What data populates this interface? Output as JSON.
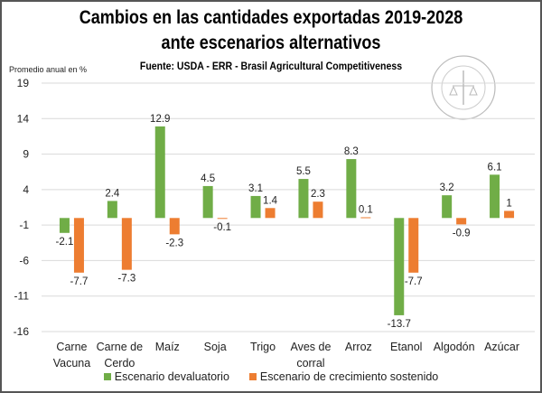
{
  "chart_data": {
    "type": "bar",
    "title": "Cambios en las cantidades exportadas 2019-2028",
    "title_line2": "ante escenarios alternativos",
    "subtitle": "Fuente: USDA - ERR - Brasil Agricultural  Competitiveness",
    "ylabel": "Promedio anual en %",
    "ylim": [
      -16,
      19
    ],
    "yticks": [
      19,
      14,
      9,
      4,
      -1,
      -6,
      -11,
      -16
    ],
    "grid": true,
    "legend_position": "bottom",
    "categories": [
      [
        "Carne",
        "Vacuna"
      ],
      [
        "Carne de",
        "Cerdo"
      ],
      [
        "Maíz"
      ],
      [
        "Soja"
      ],
      [
        "Trigo"
      ],
      [
        "Aves de",
        "corral"
      ],
      [
        "Arroz"
      ],
      [
        "Etanol"
      ],
      [
        "Algodón"
      ],
      [
        "Azúcar"
      ]
    ],
    "series": [
      {
        "name": "Escenario devaluatorio",
        "color": "#70ad47",
        "values": [
          -2.1,
          2.4,
          12.9,
          4.5,
          3.1,
          5.5,
          8.3,
          -13.7,
          3.2,
          6.1
        ]
      },
      {
        "name": "Escenario de crecimiento sostenido",
        "color": "#ed7d31",
        "values": [
          -7.7,
          -7.3,
          -2.3,
          -0.1,
          1.4,
          2.3,
          0.1,
          -7.7,
          -0.9,
          1
        ]
      }
    ]
  },
  "watermark": "BOLSA DE COMERCIO DE ROSARIO"
}
